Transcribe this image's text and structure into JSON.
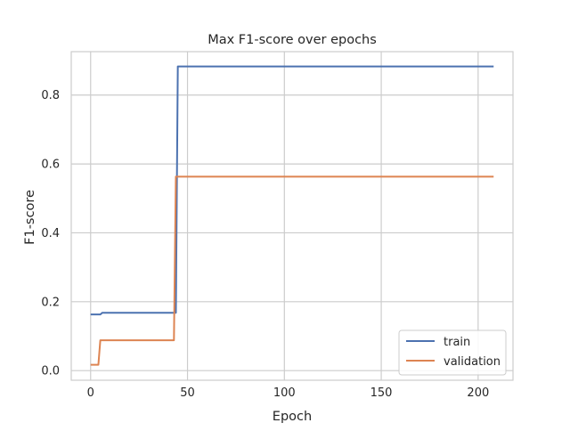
{
  "chart_data": {
    "type": "line",
    "title": "Max F1-score over epochs",
    "xlabel": "Epoch",
    "ylabel": "F1-score",
    "xlim": [
      -10,
      218
    ],
    "ylim": [
      -0.028,
      0.926
    ],
    "xticks": [
      0,
      50,
      100,
      150,
      200
    ],
    "yticks": [
      0.0,
      0.2,
      0.4,
      0.6,
      0.8
    ],
    "xtick_labels": [
      "0",
      "50",
      "100",
      "150",
      "200"
    ],
    "ytick_labels": [
      "0.0",
      "0.2",
      "0.4",
      "0.6",
      "0.8"
    ],
    "grid": true,
    "legend_position": "lower right",
    "series": [
      {
        "name": "train",
        "color": "#4c72b0",
        "points": [
          [
            0,
            0.163
          ],
          [
            5,
            0.163
          ],
          [
            6,
            0.168
          ],
          [
            44,
            0.168
          ],
          [
            45,
            0.883
          ],
          [
            208,
            0.883
          ]
        ]
      },
      {
        "name": "validation",
        "color": "#dd8452",
        "points": [
          [
            0,
            0.017
          ],
          [
            4,
            0.017
          ],
          [
            5,
            0.088
          ],
          [
            43,
            0.088
          ],
          [
            44,
            0.563
          ],
          [
            208,
            0.563
          ]
        ]
      }
    ]
  }
}
